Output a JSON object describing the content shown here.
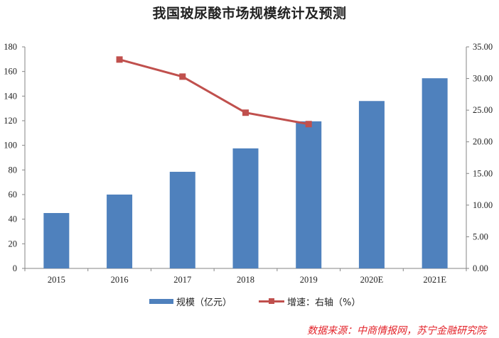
{
  "chart_data": {
    "type": "bar+line",
    "title": "我国玻尿酸市场规模统计及预测",
    "categories": [
      "2015",
      "2016",
      "2017",
      "2018",
      "2019",
      "2020E",
      "2021E"
    ],
    "series": [
      {
        "name": "规模（亿元）",
        "type": "bar",
        "axis": "left",
        "color": "#4F81BD",
        "values": [
          45,
          60,
          78.5,
          97.5,
          119.5,
          136,
          154.5
        ]
      },
      {
        "name": "增速：右轴（%）",
        "type": "line",
        "axis": "right",
        "color": "#C0504D",
        "values": [
          null,
          33.0,
          30.3,
          24.6,
          22.8,
          null,
          null
        ]
      }
    ],
    "left_axis": {
      "min": 0,
      "max": 180,
      "step": 20,
      "ticks": [
        "0",
        "20",
        "40",
        "60",
        "80",
        "100",
        "120",
        "140",
        "160",
        "180"
      ]
    },
    "right_axis": {
      "min": 0,
      "max": 35,
      "step": 5,
      "ticks": [
        "0.00",
        "5.00",
        "10.00",
        "15.00",
        "20.00",
        "25.00",
        "30.00",
        "35.00"
      ]
    },
    "xlabel": "",
    "ylabel": "",
    "grid": false,
    "legend_position": "bottom"
  },
  "source": "数据来源：中商情报网，苏宁金融研究院"
}
